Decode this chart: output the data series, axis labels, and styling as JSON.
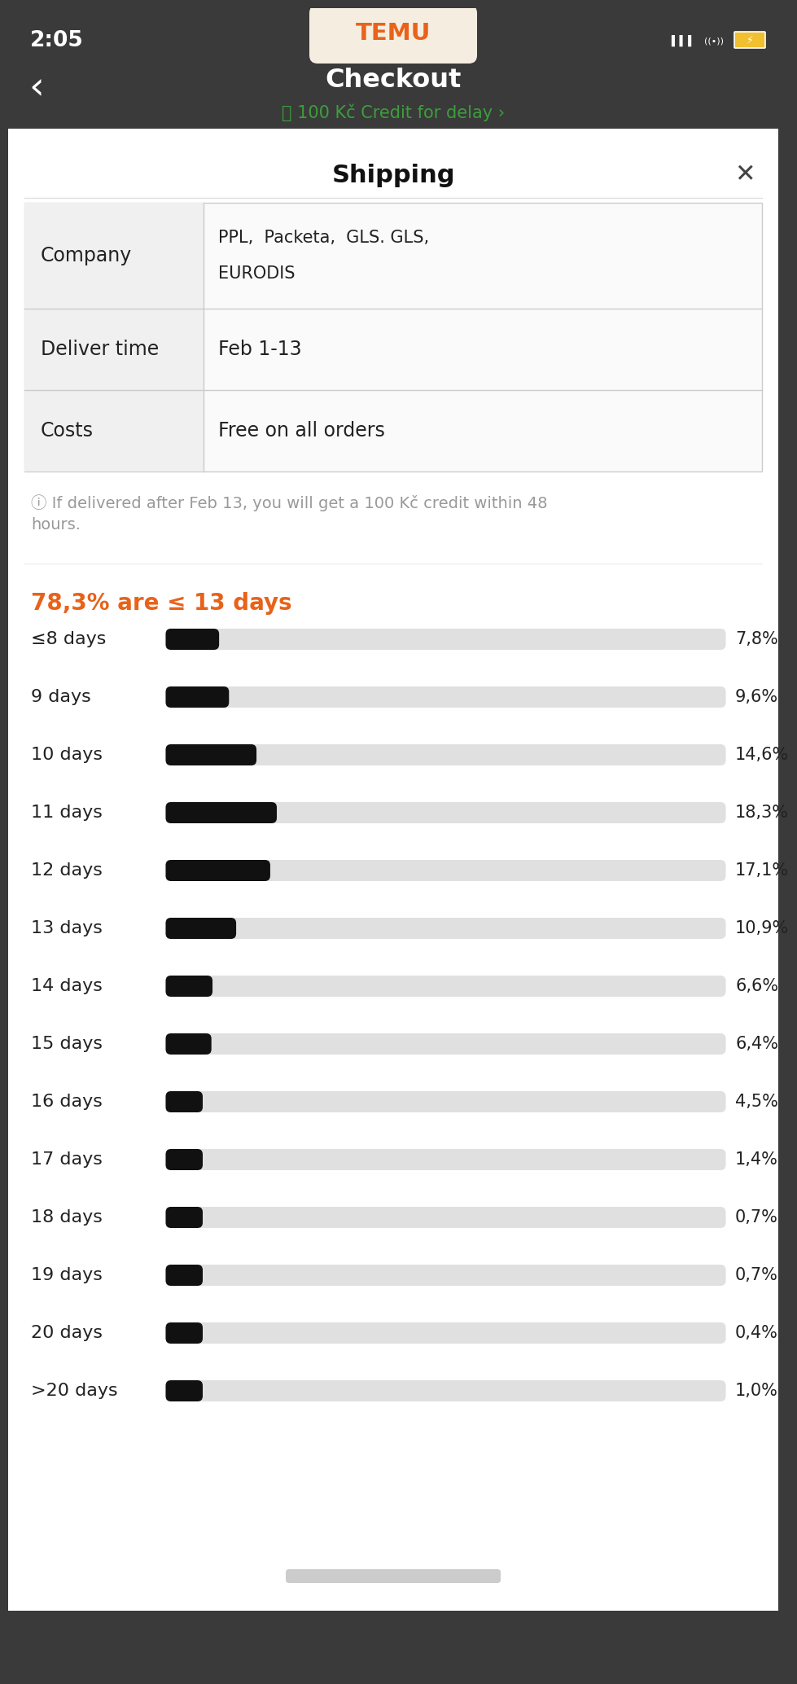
{
  "bg_color": "#3a3a3a",
  "time_text": "2:05",
  "temu_text": "TEMU",
  "checkout_text": "Checkout",
  "credit_text": "📦 100 Kč Credit for delay ›",
  "shipping_title": "Shipping",
  "info_text": "ⓘ If delivered after Feb 13, you will get a 100 Kč credit within 48\nhours.",
  "highlight_text": "78,3% are ≤ 13 days",
  "highlight_color": "#e8621a",
  "bars": [
    {
      "label": "≤8 days",
      "value": 7.8,
      "display": "7,8%"
    },
    {
      "label": "9 days",
      "value": 9.6,
      "display": "9,6%"
    },
    {
      "label": "10 days",
      "value": 14.6,
      "display": "14,6%"
    },
    {
      "label": "11 days",
      "value": 18.3,
      "display": "18,3%"
    },
    {
      "label": "12 days",
      "value": 17.1,
      "display": "17,1%"
    },
    {
      "label": "13 days",
      "value": 10.9,
      "display": "10,9%"
    },
    {
      "label": "14 days",
      "value": 6.6,
      "display": "6,6%"
    },
    {
      "label": "15 days",
      "value": 6.4,
      "display": "6,4%"
    },
    {
      "label": "16 days",
      "value": 4.5,
      "display": "4,5%"
    },
    {
      "label": "17 days",
      "value": 1.4,
      "display": "1,4%"
    },
    {
      "label": "18 days",
      "value": 0.7,
      "display": "0,7%"
    },
    {
      "label": "19 days",
      "value": 0.7,
      "display": "0,7%"
    },
    {
      "label": "20 days",
      "value": 0.4,
      "display": "0,4%"
    },
    {
      "label": ">20 days",
      "value": 1.0,
      "display": "1,0%"
    }
  ],
  "bar_color": "#111111",
  "bar_bg_color": "#e0e0e0",
  "bar_scale_max": 100
}
